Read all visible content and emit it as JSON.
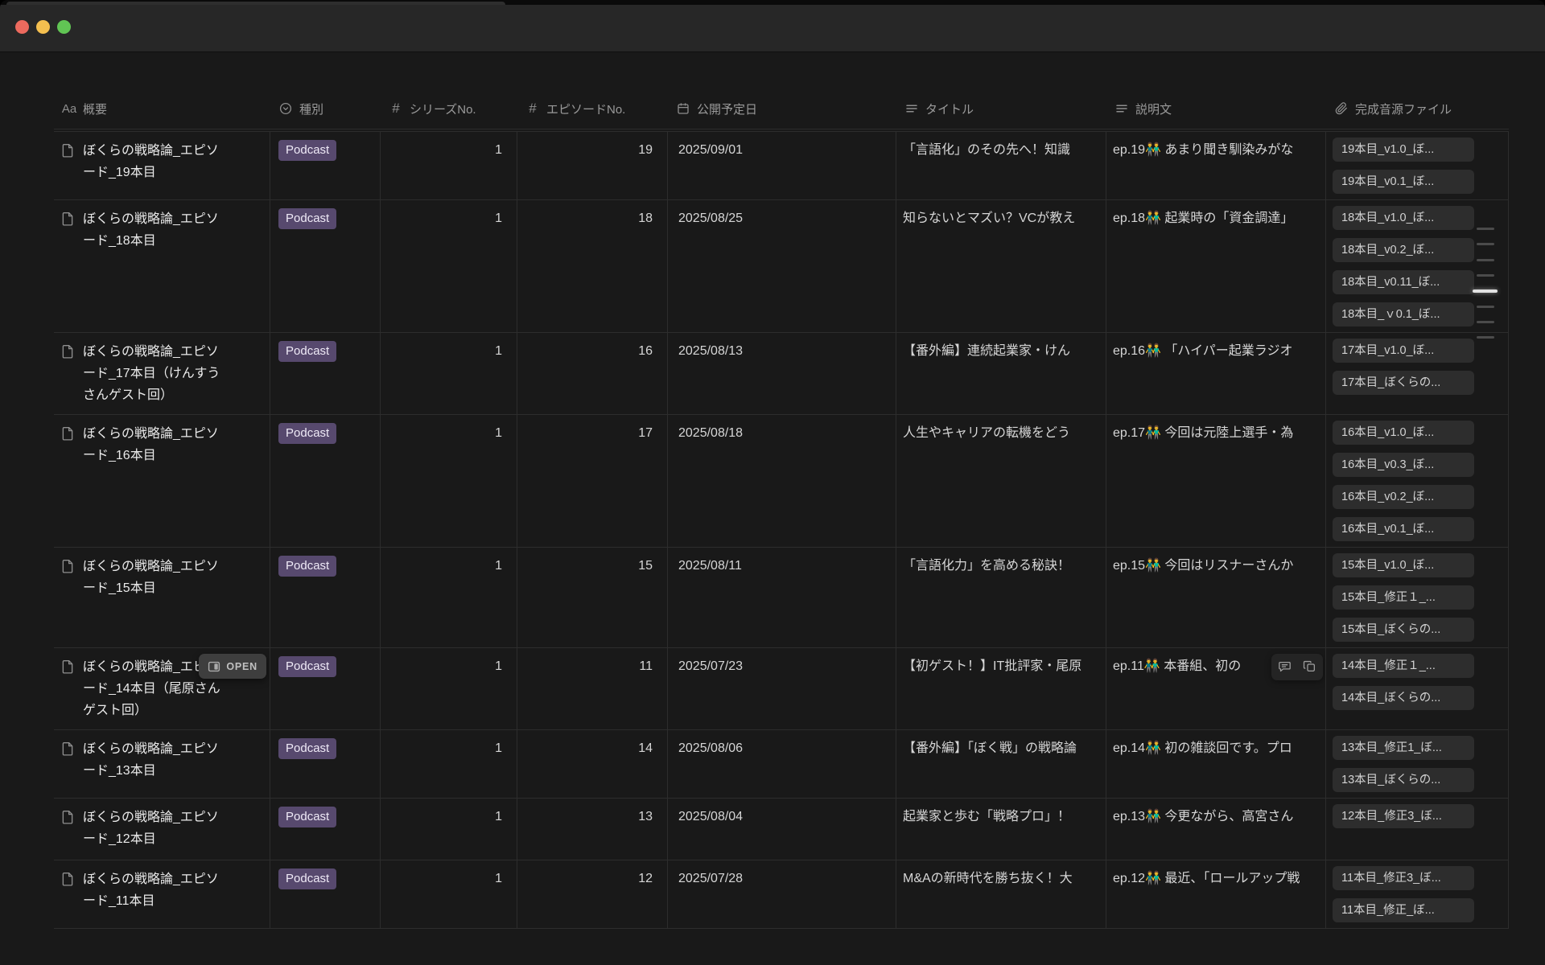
{
  "window": {
    "traffic_lights": [
      {
        "name": "close",
        "color": "#ec6a5e"
      },
      {
        "name": "minimize",
        "color": "#f4bf4f"
      },
      {
        "name": "zoom",
        "color": "#61c554"
      }
    ]
  },
  "open_button": {
    "label": "OPEN"
  },
  "table": {
    "columns": [
      {
        "id": "overview",
        "label": "概要",
        "icon": "text-Aa-icon"
      },
      {
        "id": "type",
        "label": "種別",
        "icon": "select-icon"
      },
      {
        "id": "series",
        "label": "シリーズNo.",
        "icon": "number-icon"
      },
      {
        "id": "episode",
        "label": "エピソードNo.",
        "icon": "number-icon"
      },
      {
        "id": "date",
        "label": "公開予定日",
        "icon": "calendar-icon"
      },
      {
        "id": "title",
        "label": "タイトル",
        "icon": "text-lines-icon"
      },
      {
        "id": "desc",
        "label": "説明文",
        "icon": "text-lines-icon"
      },
      {
        "id": "files",
        "label": "完成音源ファイル",
        "icon": "paperclip-icon"
      }
    ],
    "tag_colors": {
      "bg": "#57496e",
      "text": "#eee9f6"
    },
    "rows": [
      {
        "overview": "ぼくらの戦略論_エピソード_19本目",
        "type": "Podcast",
        "series": "1",
        "episode": "19",
        "date": "2025/09/01",
        "title": "「言語化」のその先へ！知識",
        "desc": "ep.19👬 あまり聞き馴染みがな",
        "files": [
          "19本目_v1.0_ぼ...",
          "19本目_v0.1_ぼ..."
        ]
      },
      {
        "overview": "ぼくらの戦略論_エピソード_18本目",
        "type": "Podcast",
        "series": "1",
        "episode": "18",
        "date": "2025/08/25",
        "title": "知らないとマズい？VCが教え",
        "desc": "ep.18👬 起業時の「資金調達」",
        "files": [
          "18本目_v1.0_ぼ...",
          "18本目_v0.2_ぼ...",
          "18本目_v0.11_ぼ...",
          "18本目_ｖ0.1_ぼ..."
        ],
        "edge_marks": {
          "count": 8,
          "bright_index": 4
        }
      },
      {
        "overview": "ぼくらの戦略論_エピソード_17本目（けんすうさんゲスト回）",
        "type": "Podcast",
        "series": "1",
        "episode": "16",
        "date": "2025/08/13",
        "title": "【番外編】連続起業家・けん",
        "desc": "ep.16👬 「ハイパー起業ラジオ",
        "files": [
          "17本目_v1.0_ぼ...",
          "17本目_ぼくらの..."
        ]
      },
      {
        "overview": "ぼくらの戦略論_エピソード_16本目",
        "type": "Podcast",
        "series": "1",
        "episode": "17",
        "date": "2025/08/18",
        "title": "人生やキャリアの転機をどう",
        "desc": "ep.17👬 今回は元陸上選手・為",
        "files": [
          "16本目_v1.0_ぼ...",
          "16本目_v0.3_ぼ...",
          "16本目_v0.2_ぼ...",
          "16本目_v0.1_ぼ..."
        ]
      },
      {
        "overview": "ぼくらの戦略論_エピソード_15本目",
        "type": "Podcast",
        "series": "1",
        "episode": "15",
        "date": "2025/08/11",
        "title": "「言語化力」を高める秘訣！",
        "desc": "ep.15👬 今回はリスナーさんか",
        "files": [
          "15本目_v1.0_ぼ...",
          "15本目_修正１_...",
          "15本目_ぼくらの..."
        ]
      },
      {
        "overview": "ぼくらの戦略論_エピソード_14本目（尾原さんゲスト回）",
        "type": "Podcast",
        "series": "1",
        "episode": "11",
        "date": "2025/07/23",
        "title": "【初ゲスト！】IT批評家・尾原",
        "desc": "ep.11👬 本番組、初の",
        "files": [
          "14本目_修正１_...",
          "14本目_ぼくらの..."
        ],
        "open_button": true,
        "hover_icons": true
      },
      {
        "overview": "ぼくらの戦略論_エピソード_13本目",
        "type": "Podcast",
        "series": "1",
        "episode": "14",
        "date": "2025/08/06",
        "title": "【番外編】「ぼく戦」の戦略論",
        "desc": "ep.14👬 初の雑談回です。プロ",
        "files": [
          "13本目_修正1_ぼ...",
          "13本目_ぼくらの..."
        ]
      },
      {
        "overview": "ぼくらの戦略論_エピソード_12本目",
        "type": "Podcast",
        "series": "1",
        "episode": "13",
        "date": "2025/08/04",
        "title": "起業家と歩む「戦略プロ」！",
        "desc": "ep.13👬 今更ながら、高宮さん",
        "files": [
          "12本目_修正3_ぼ..."
        ]
      },
      {
        "overview": "ぼくらの戦略論_エピソード_11本目",
        "type": "Podcast",
        "series": "1",
        "episode": "12",
        "date": "2025/07/28",
        "title": "M&Aの新時代を勝ち抜く！大",
        "desc": "ep.12👬 最近、「ロールアップ戦",
        "files": [
          "11本目_修正3_ぼ...",
          "11本目_修正_ぼ..."
        ]
      }
    ]
  }
}
